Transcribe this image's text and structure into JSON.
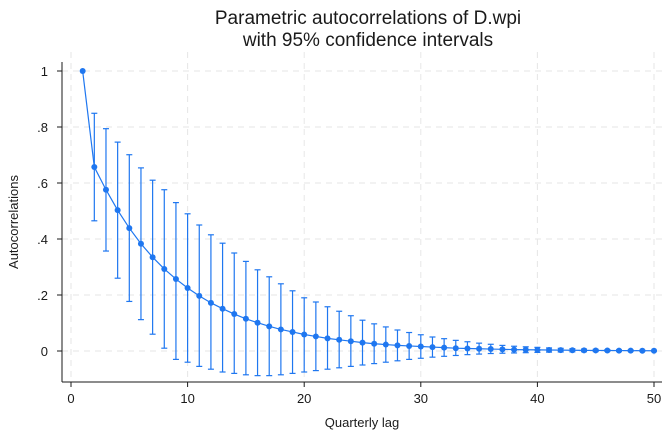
{
  "chart_data": {
    "type": "scatter",
    "title": [
      "Parametric autocorrelations of D.wpi",
      "with 95% confidence intervals"
    ],
    "xlabel": "Quarterly lag",
    "ylabel": "Autocorrelations",
    "xlim": [
      0,
      50
    ],
    "ylim": [
      -0.1,
      1
    ],
    "xticks": [
      0,
      10,
      20,
      30,
      40,
      50
    ],
    "xtick_labels": [
      "0",
      "10",
      "20",
      "30",
      "40",
      "50"
    ],
    "yticks": [
      0,
      0.2,
      0.4,
      0.6,
      0.8,
      1
    ],
    "ytick_labels": [
      "0",
      ".2",
      ".4",
      ".6",
      ".8",
      "1"
    ],
    "grid": true,
    "series_color": "#1f77f0",
    "series": [
      {
        "x": [
          1,
          2,
          3,
          4,
          5,
          6,
          7,
          8,
          9,
          10,
          11,
          12,
          13,
          14,
          15,
          16,
          17,
          18,
          19,
          20,
          21,
          22,
          23,
          24,
          25,
          26,
          27,
          28,
          29,
          30,
          31,
          32,
          33,
          34,
          35,
          36,
          37,
          38,
          39,
          40,
          41,
          42,
          43,
          44,
          45,
          46,
          47,
          48,
          49,
          50
        ],
        "y": [
          1.0,
          0.657,
          0.576,
          0.503,
          0.439,
          0.383,
          0.335,
          0.293,
          0.257,
          0.225,
          0.197,
          0.172,
          0.151,
          0.132,
          0.115,
          0.101,
          0.088,
          0.077,
          0.068,
          0.059,
          0.052,
          0.045,
          0.04,
          0.035,
          0.03,
          0.026,
          0.023,
          0.02,
          0.018,
          0.016,
          0.014,
          0.012,
          0.01,
          0.009,
          0.008,
          0.007,
          0.006,
          0.005,
          0.0045,
          0.004,
          0.0035,
          0.003,
          0.0026,
          0.0023,
          0.002,
          0.0017,
          0.0015,
          0.0013,
          0.0011,
          0.001
        ],
        "ci_lower": [
          null,
          0.465,
          0.357,
          0.26,
          0.177,
          0.112,
          0.06,
          0.01,
          -0.03,
          -0.04,
          -0.055,
          -0.065,
          -0.075,
          -0.08,
          -0.085,
          -0.088,
          -0.088,
          -0.085,
          -0.08,
          -0.075,
          -0.07,
          -0.065,
          -0.06,
          -0.055,
          -0.05,
          -0.045,
          -0.04,
          -0.035,
          -0.03,
          -0.026,
          -0.022,
          -0.019,
          -0.016,
          -0.013,
          -0.011,
          -0.009,
          -0.008,
          -0.007,
          -0.006,
          -0.005,
          -0.004,
          -0.0035,
          -0.003,
          -0.0025,
          -0.002,
          -0.0015,
          -0.0012,
          -0.001,
          -0.0008,
          -0.0006
        ],
        "ci_upper": [
          null,
          0.849,
          0.794,
          0.746,
          0.701,
          0.654,
          0.61,
          0.576,
          0.53,
          0.49,
          0.45,
          0.415,
          0.385,
          0.35,
          0.32,
          0.29,
          0.265,
          0.24,
          0.215,
          0.19,
          0.175,
          0.158,
          0.142,
          0.126,
          0.11,
          0.097,
          0.086,
          0.075,
          0.066,
          0.058,
          0.05,
          0.044,
          0.038,
          0.033,
          0.028,
          0.024,
          0.02,
          0.017,
          0.015,
          0.013,
          0.011,
          0.0095,
          0.008,
          0.007,
          0.006,
          0.005,
          0.0042,
          0.0036,
          0.003,
          0.0026
        ]
      }
    ]
  }
}
